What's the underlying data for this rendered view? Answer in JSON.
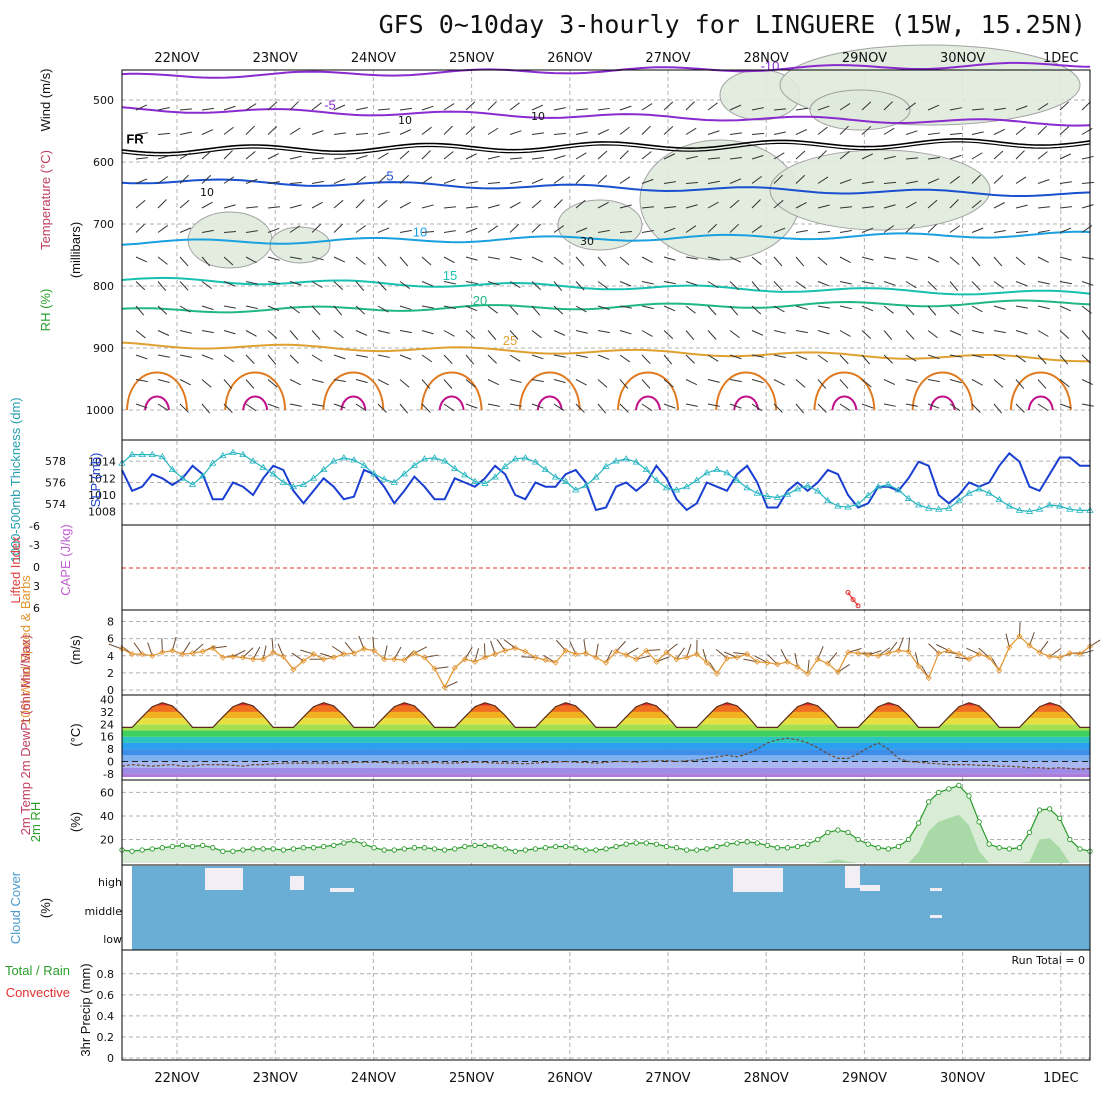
{
  "title": "GFS 0~10day 3-hourly for LINGUERE (15W, 15.25N)",
  "dates": [
    "22NOV",
    "23NOV",
    "24NOV",
    "25NOV",
    "26NOV",
    "27NOV",
    "28NOV",
    "29NOV",
    "30NOV",
    "1DEC"
  ],
  "colors": {
    "grid": "#b0b0b0",
    "frame": "#000000",
    "slp": "#1a3fd0",
    "thickness": "#26b5c0",
    "wind_line": "#e39530",
    "barb": "#6b4a30",
    "rh2m_line": "#2a9a2a",
    "cloud": "#6aaed6",
    "cloud_gap": "#f2eef6",
    "lifted": "#e83030",
    "cape": "#c060d0",
    "freezing": "#000000",
    "dewpt": "#6b4a30"
  },
  "chart_data": [
    {
      "type": "line",
      "panel": "upper-air",
      "ylabel_parts": [
        "RH (%)",
        "Temperature (°C)",
        "Wind (m/s)"
      ],
      "ylabel_units": "(millibars)",
      "yticks": [
        500,
        600,
        700,
        800,
        900,
        1000
      ],
      "ylim": [
        1000,
        450
      ],
      "isotherms": [
        {
          "label": "-10",
          "level_mb": 462,
          "color": "#8a2bd0"
        },
        {
          "label": "-5",
          "level_mb": 515,
          "color": "#8a2bd0"
        },
        {
          "label": "FR",
          "level_mb": 580,
          "color": "#000000"
        },
        {
          "label": "5",
          "level_mb": 630,
          "color": "#1a50d0"
        },
        {
          "label": "10",
          "level_mb": 730,
          "color": "#1aa0e0"
        },
        {
          "label": "15",
          "level_mb": 790,
          "color": "#18c0b0"
        },
        {
          "label": "20",
          "level_mb": 840,
          "color": "#20b880"
        },
        {
          "label": "25",
          "level_mb": 895,
          "color": "#e0a030"
        }
      ],
      "rh_contour_labels": [
        "10",
        "10",
        "10",
        "30"
      ]
    },
    {
      "type": "line",
      "panel": "pressure",
      "ylabel": "1000-500mb Thickness (dm)",
      "ylabel2": "SLP (mb)",
      "left_ticks": [
        574,
        576,
        578
      ],
      "right_ticks": [
        1008,
        1010,
        1012,
        1014
      ],
      "series": [
        {
          "name": "SLP (mb)",
          "values": [
            1013.0,
            1010.5,
            1011.0,
            1012.5,
            1012.0,
            1011.2,
            1012.0,
            1013.5,
            1012.5,
            1009.5,
            1009.5,
            1011.5,
            1011.0,
            1010.0,
            1012.0,
            1013.5,
            1013.0,
            1010.5,
            1009.0,
            1010.5,
            1012.0,
            1011.0,
            1009.5,
            1009.8,
            1013.0,
            1012.5,
            1011.0,
            1009.0,
            1010.5,
            1012.2,
            1011.0,
            1009.5,
            1009.5,
            1012.0,
            1011.5,
            1011.0,
            1012.0,
            1013.5,
            1012.5,
            1010.0,
            1009.5,
            1011.5,
            1011.0,
            1011.0,
            1012.5,
            1013.0,
            1011.5,
            1008.2,
            1008.5,
            1011.0,
            1011.5,
            1010.5,
            1011.5,
            1013.5,
            1012.0,
            1009.5,
            1008.2,
            1009.0,
            1011.5,
            1011.0,
            1010.5,
            1012.5,
            1013.5,
            1011.5,
            1008.5,
            1008.5,
            1010.5,
            1011.5,
            1010.5,
            1011.5,
            1013.0,
            1012.5,
            1010.0,
            1008.5,
            1009.0,
            1011.0,
            1011.0,
            1010.5,
            1012.0,
            1014.0,
            1013.5,
            1010.0,
            1009.0,
            1010.0,
            1011.5,
            1011.0,
            1011.5,
            1013.5,
            1015.0,
            1014.0,
            1011.0,
            1010.5,
            1012.5,
            1014.5,
            1014.5,
            1013.5,
            1013.5
          ]
        },
        {
          "name": "1000-500mb Thickness (dm)",
          "values": [
            577.8,
            578.6,
            578.6,
            578.6,
            578.4,
            577.2,
            576.4,
            575.8,
            576.6,
            577.8,
            578.5,
            578.8,
            578.6,
            578.0,
            577.4,
            576.8,
            576.0,
            575.6,
            575.8,
            576.4,
            577.2,
            578.0,
            578.3,
            578.1,
            577.6,
            576.8,
            576.3,
            576.0,
            576.8,
            577.6,
            578.2,
            578.3,
            578.0,
            577.3,
            576.7,
            576.1,
            575.9,
            576.5,
            577.5,
            578.2,
            578.3,
            577.9,
            577.2,
            576.5,
            576.1,
            575.3,
            575.7,
            576.5,
            577.5,
            578.0,
            578.2,
            577.9,
            577.2,
            576.2,
            575.5,
            575.3,
            575.6,
            576.2,
            576.9,
            577.2,
            576.9,
            576.2,
            575.5,
            575.0,
            574.7,
            574.6,
            574.9,
            575.4,
            575.7,
            575.2,
            574.3,
            573.8,
            573.7,
            574.0,
            574.8,
            575.6,
            575.8,
            575.3,
            574.5,
            573.9,
            573.6,
            573.5,
            573.6,
            574.3,
            575.0,
            575.4,
            575.0,
            574.4,
            573.8,
            573.4,
            573.3,
            573.5,
            573.9,
            573.8,
            573.5,
            573.4,
            573.4
          ]
        }
      ]
    },
    {
      "type": "line",
      "panel": "stability",
      "ylabel": "Lifted Index",
      "ylabel2": "CAPE (J/kg)",
      "yticks": [
        "-6",
        "-3",
        "0",
        "3",
        "6"
      ],
      "series": [
        {
          "name": "Lifted Index",
          "values": [
            {
              "x": 72.0,
              "y": 3.5
            },
            {
              "x": 72.5,
              "y": 4.5
            },
            {
              "x": 73.0,
              "y": 5.4
            }
          ]
        }
      ]
    },
    {
      "type": "line",
      "panel": "wind10m",
      "ylabel": "10m Wind Speed & Barbs",
      "ylabel_units": "(m/s)",
      "yticks": [
        0,
        2,
        4,
        6,
        8
      ],
      "ylim": [
        0,
        9
      ],
      "series": [
        {
          "name": "Speed",
          "values": [
            4.8,
            4.2,
            4.2,
            4.0,
            4.4,
            4.6,
            4.2,
            4.3,
            4.5,
            4.9,
            3.8,
            3.9,
            3.8,
            3.6,
            3.6,
            4.4,
            3.9,
            2.4,
            3.4,
            4.2,
            3.6,
            3.8,
            4.2,
            4.3,
            4.8,
            4.6,
            3.6,
            3.6,
            3.5,
            4.3,
            3.8,
            2.5,
            0.3,
            2.6,
            3.6,
            3.3,
            3.8,
            4.2,
            4.6,
            4.9,
            4.5,
            3.8,
            3.5,
            3.2,
            4.6,
            4.2,
            4.3,
            3.8,
            3.2,
            4.5,
            4.1,
            3.6,
            4.6,
            3.3,
            4.4,
            3.6,
            3.8,
            4.2,
            3.2,
            1.9,
            3.7,
            3.8,
            4.2,
            3.3,
            3.2,
            3.0,
            3.3,
            2.7,
            1.9,
            3.6,
            3.1,
            2.1,
            4.4,
            4.3,
            4.1,
            4.0,
            4.3,
            4.6,
            4.5,
            2.8,
            1.4,
            4.3,
            4.6,
            4.2,
            3.6,
            4.2,
            3.8,
            2.3,
            5.0,
            6.3,
            5.2,
            4.4,
            3.9,
            3.8,
            4.3,
            4.2,
            5.1
          ]
        }
      ]
    },
    {
      "type": "area",
      "panel": "temperature",
      "ylabel": "2m Temp 2m DewPt (6hr Min/Max)",
      "ylabel_units": "(°C)",
      "yticks": [
        "-8",
        "0",
        "8",
        "16",
        "24",
        "32",
        "40"
      ],
      "ylim": [
        -10,
        41
      ],
      "series": [
        {
          "name": "2m Temp",
          "daily_min": 22,
          "daily_max": 38
        },
        {
          "name": "2m DewPt",
          "values": [
            -3,
            -2,
            -2.5,
            -3,
            -2.5,
            -2,
            -3,
            -3,
            -2,
            -2,
            -2,
            -2.5,
            -3,
            -2,
            -2,
            -1.5,
            -1,
            -1,
            -1,
            -1,
            -1,
            -1,
            -1,
            -0.5,
            -0.5,
            -0.5,
            -0.5,
            -1,
            -1,
            -1,
            -1,
            -0.5,
            -1,
            -1,
            -0.5,
            -0.5,
            -0.5,
            -1,
            -1,
            -1,
            -1.5,
            -1,
            -0.5,
            -0.5,
            0,
            -0.5,
            -0.5,
            -1,
            -0.5,
            0,
            0,
            -0.5,
            0,
            0.5,
            0.5,
            0,
            0.5,
            1,
            2,
            3,
            4,
            3,
            5,
            8,
            12,
            14,
            15,
            14,
            12,
            9,
            5,
            2,
            2,
            5,
            9,
            12,
            8,
            2,
            0,
            -0.5,
            -1,
            -1.5,
            -2,
            -2,
            -2,
            -2.5,
            -2.5,
            -3,
            -3,
            -3.5,
            -4,
            -4,
            -4.5,
            -4,
            -4.5,
            -5,
            -4.5
          ]
        }
      ]
    },
    {
      "type": "area",
      "panel": "rh2m",
      "ylabel": "2m RH",
      "ylabel_units": "(%)",
      "yticks": [
        20,
        40,
        60
      ],
      "ylim": [
        0,
        68
      ],
      "series": [
        {
          "name": "2m RH",
          "values": [
            11,
            10,
            11,
            12,
            13,
            14,
            15,
            14,
            15,
            13,
            10,
            10,
            11,
            12,
            12,
            12,
            11,
            12,
            13,
            13,
            14,
            15,
            17,
            19,
            16,
            13,
            11,
            11,
            12,
            13,
            13,
            12,
            11,
            12,
            14,
            15,
            15,
            14,
            12,
            10,
            11,
            12,
            13,
            14,
            14,
            13,
            11,
            11,
            12,
            14,
            16,
            17,
            17,
            16,
            14,
            13,
            11,
            11,
            12,
            14,
            16,
            17,
            18,
            17,
            15,
            13,
            13,
            14,
            16,
            20,
            26,
            28,
            26,
            20,
            16,
            13,
            12,
            14,
            20,
            34,
            52,
            60,
            63,
            66,
            57,
            35,
            16,
            13,
            12,
            13,
            26,
            45,
            46,
            38,
            20,
            12,
            10
          ]
        }
      ]
    },
    {
      "type": "heatmap",
      "panel": "cloud",
      "ylabel": "Cloud Cover",
      "ylabel_units": "(%)",
      "level_labels": [
        "high",
        "middle",
        "low"
      ]
    },
    {
      "type": "bar",
      "panel": "precip",
      "ylabel": "3hr Precip (mm)",
      "legend": [
        "Total / Rain",
        "Convective"
      ],
      "yticks": [
        "0",
        "0.2",
        "0.4",
        "0.6",
        "0.8"
      ],
      "ylim": [
        0,
        0.95
      ],
      "run_total_label": "Run Total = 0",
      "values": [
        0,
        0,
        0,
        0,
        0,
        0,
        0,
        0,
        0,
        0
      ]
    }
  ]
}
